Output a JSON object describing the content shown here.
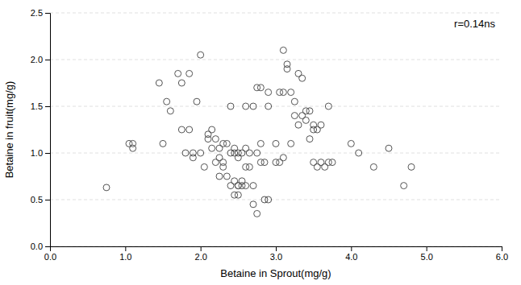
{
  "chart_data": {
    "type": "scatter",
    "x": [
      0.75,
      1.05,
      1.1,
      1.1,
      1.45,
      1.5,
      1.55,
      1.6,
      1.7,
      1.75,
      1.75,
      1.8,
      1.85,
      1.85,
      1.9,
      1.9,
      1.95,
      2.0,
      2.0,
      2.05,
      2.1,
      2.1,
      2.15,
      2.15,
      2.2,
      2.2,
      2.25,
      2.25,
      2.25,
      2.3,
      2.3,
      2.3,
      2.35,
      2.35,
      2.4,
      2.4,
      2.4,
      2.45,
      2.45,
      2.45,
      2.45,
      2.5,
      2.5,
      2.5,
      2.5,
      2.5,
      2.55,
      2.55,
      2.55,
      2.6,
      2.6,
      2.6,
      2.6,
      2.65,
      2.65,
      2.7,
      2.7,
      2.7,
      2.75,
      2.75,
      2.75,
      2.8,
      2.8,
      2.8,
      2.85,
      2.85,
      2.9,
      2.9,
      2.9,
      3.0,
      3.0,
      3.05,
      3.05,
      3.1,
      3.1,
      3.1,
      3.15,
      3.15,
      3.2,
      3.2,
      3.25,
      3.25,
      3.3,
      3.3,
      3.35,
      3.35,
      3.4,
      3.4,
      3.45,
      3.45,
      3.5,
      3.5,
      3.5,
      3.55,
      3.55,
      3.6,
      3.6,
      3.65,
      3.7,
      3.7,
      3.75,
      4.0,
      4.1,
      4.3,
      4.5,
      4.7,
      4.8
    ],
    "y": [
      0.63,
      1.1,
      1.1,
      1.05,
      1.75,
      1.1,
      1.55,
      1.45,
      1.85,
      1.75,
      1.25,
      1.0,
      1.85,
      1.25,
      1.0,
      0.95,
      1.55,
      2.05,
      1.0,
      0.85,
      1.2,
      1.15,
      1.05,
      1.25,
      1.15,
      0.9,
      1.05,
      0.95,
      0.75,
      1.1,
      0.9,
      0.85,
      1.1,
      0.75,
      1.5,
      1.0,
      0.65,
      1.05,
      1.0,
      0.7,
      0.55,
      1.0,
      0.95,
      0.65,
      0.65,
      0.55,
      1.0,
      0.7,
      0.65,
      1.5,
      1.05,
      0.85,
      0.65,
      1.0,
      0.85,
      1.5,
      0.65,
      0.45,
      1.7,
      1.0,
      0.35,
      1.7,
      1.1,
      0.9,
      0.9,
      0.5,
      1.65,
      1.5,
      0.5,
      1.1,
      0.9,
      1.65,
      0.9,
      2.1,
      1.65,
      0.95,
      1.95,
      1.9,
      1.65,
      1.1,
      1.55,
      1.4,
      1.85,
      1.3,
      1.8,
      1.4,
      1.45,
      1.35,
      1.45,
      1.15,
      1.3,
      1.25,
      0.9,
      1.25,
      0.85,
      1.3,
      0.9,
      0.85,
      1.5,
      0.9,
      0.9,
      1.1,
      1.0,
      0.85,
      1.05,
      0.65,
      0.85
    ],
    "annotation": "r=0.14ns",
    "xlabel": "Betaine in Sprout(mg/g)",
    "ylabel": "Betaine in fruit(mg/g)",
    "xlim": [
      0.0,
      6.0
    ],
    "ylim": [
      0.0,
      2.5
    ],
    "xticks": [
      {
        "value": 0.0,
        "label": "0.0"
      },
      {
        "value": 1.0,
        "label": "1.0"
      },
      {
        "value": 2.0,
        "label": "2.0"
      },
      {
        "value": 3.0,
        "label": "3.0"
      },
      {
        "value": 4.0,
        "label": "4.0"
      },
      {
        "value": 5.0,
        "label": "5.0"
      },
      {
        "value": 6.0,
        "label": "6.0"
      }
    ],
    "yticks": [
      {
        "value": 0.0,
        "label": "0.0"
      },
      0.5,
      {
        "value": 1.0,
        "label": "1.0"
      },
      1.5,
      {
        "value": 2.0,
        "label": "2.0"
      },
      2.5
    ],
    "grid": "y",
    "color": "#555555",
    "marker": "open"
  }
}
